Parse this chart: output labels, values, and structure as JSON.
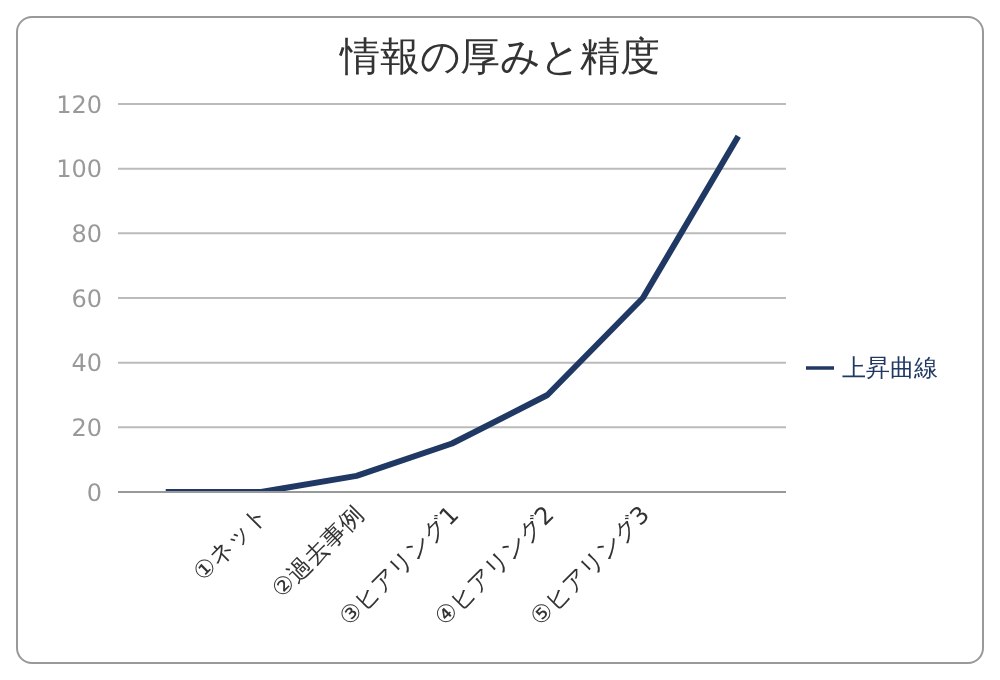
{
  "chart_data": {
    "type": "line",
    "title": "情報の厚みと精度",
    "categories": [
      null,
      "①ネット",
      "②過去事例",
      "③ヒアリング1",
      "④ヒアリング2",
      "⑤ヒアリング3",
      null
    ],
    "series": [
      {
        "name": "上昇曲線",
        "color": "#203864",
        "values": [
          0,
          0,
          5,
          15,
          30,
          60,
          110
        ]
      }
    ],
    "ylim": [
      0,
      120
    ],
    "yticks": [
      0,
      20,
      40,
      60,
      80,
      100,
      120
    ],
    "grid": "y",
    "legend": "right",
    "marker": "none",
    "line_style": "solid"
  }
}
